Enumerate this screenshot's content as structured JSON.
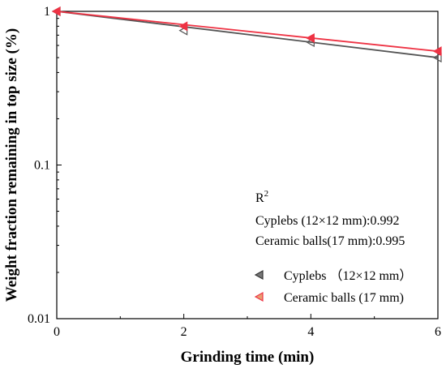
{
  "chart_data": {
    "type": "scatter",
    "xlabel": "Grinding time (min)",
    "ylabel": "Weight fraction remaining in top size (%)",
    "xlim": [
      0,
      6
    ],
    "ylim": [
      0.01,
      1
    ],
    "yscale": "log",
    "x_ticks": [
      0,
      2,
      4,
      6
    ],
    "x_tick_labels": [
      "0",
      "2",
      "4",
      "6"
    ],
    "y_ticks": [
      0.01,
      0.1,
      1
    ],
    "y_tick_labels": [
      "0.01",
      "0.1",
      "1"
    ],
    "grid": false,
    "legend_position": "bottom-right",
    "annotation": {
      "r2_label": "R",
      "r2_sup": "2",
      "line1": "Cyplebs (12×12 mm):0.992",
      "line2": "Ceramic balls(17 mm):0.995"
    },
    "series": [
      {
        "name": "Cyplebs （12×12 mm）",
        "marker": "left-triangle-outline",
        "color": "#555555",
        "x": [
          0,
          2,
          4,
          6
        ],
        "y": [
          1.0,
          0.75,
          0.63,
          0.5
        ],
        "fit": [
          1.0,
          0.5
        ]
      },
      {
        "name": "Ceramic balls (17 mm)",
        "marker": "left-triangle-filled",
        "color": "#ee3344",
        "x": [
          0,
          2,
          4,
          6
        ],
        "y": [
          1.0,
          0.8,
          0.67,
          0.55
        ],
        "fit": [
          1.0,
          0.55
        ]
      }
    ]
  }
}
